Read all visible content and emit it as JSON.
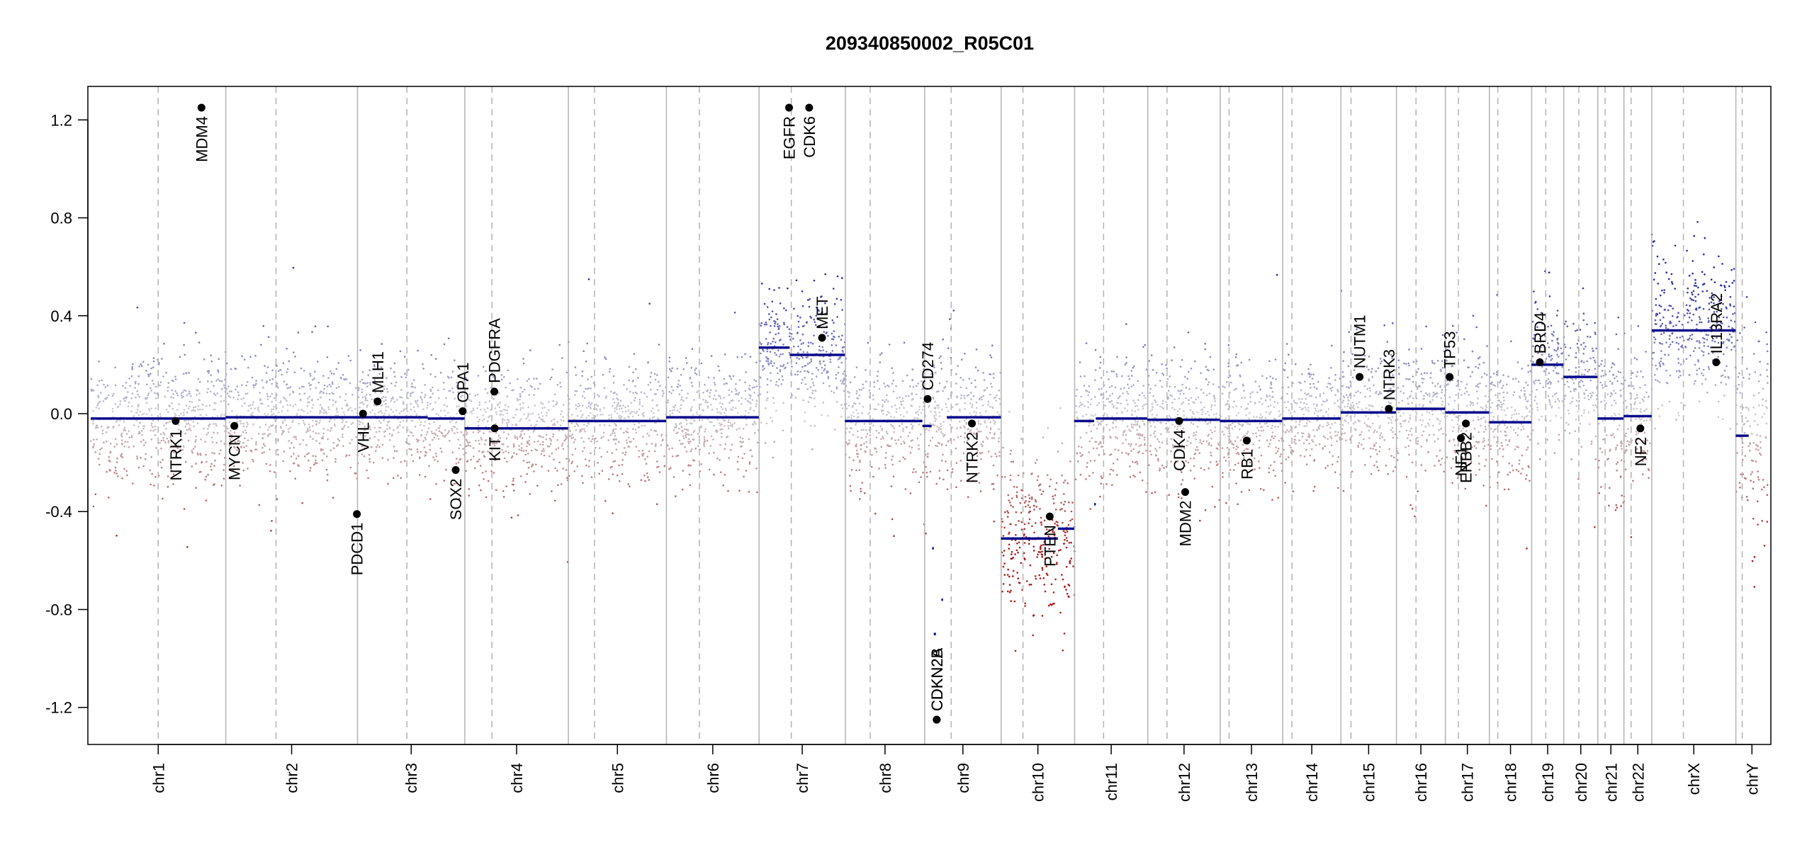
{
  "chart_data": {
    "type": "scatter",
    "title": "209340850002_R05C01",
    "xlabel": "",
    "ylabel": "",
    "ylim": [
      -1.35,
      1.35
    ],
    "yticks": [
      -1.2,
      -0.8,
      -0.4,
      0.0,
      0.4,
      0.8,
      1.2
    ],
    "ytick_labels": [
      "-1.2",
      "-0.8",
      "-0.4",
      "0.0",
      "0.4",
      "0.8",
      "1.2"
    ],
    "grid": false,
    "colors": {
      "gain": "#2b2bb5",
      "loss": "#b52020",
      "neutral": "#b8b8b8",
      "segment": "#0a0a8c",
      "gene_marker": "#000000",
      "boundary": "#b3b3b3"
    },
    "chromosomes": [
      {
        "name": "chr1",
        "start": 0.0,
        "end": 249.25
      },
      {
        "name": "chr2",
        "start": 249.25,
        "end": 492.45
      },
      {
        "name": "chr3",
        "start": 492.45,
        "end": 690.47
      },
      {
        "name": "chr4",
        "start": 690.47,
        "end": 881.63
      },
      {
        "name": "chr5",
        "start": 881.63,
        "end": 1062.55
      },
      {
        "name": "chr6",
        "start": 1062.55,
        "end": 1233.67
      },
      {
        "name": "chr7",
        "start": 1233.67,
        "end": 1392.81
      },
      {
        "name": "chr8",
        "start": 1392.81,
        "end": 1539.17
      },
      {
        "name": "chr9",
        "start": 1539.17,
        "end": 1680.38
      },
      {
        "name": "chr10",
        "start": 1680.38,
        "end": 1815.92
      },
      {
        "name": "chr11",
        "start": 1815.92,
        "end": 1950.93
      },
      {
        "name": "chr12",
        "start": 1950.93,
        "end": 2084.78
      },
      {
        "name": "chr13",
        "start": 2084.78,
        "end": 2199.95
      },
      {
        "name": "chr14",
        "start": 2199.95,
        "end": 2307.3
      },
      {
        "name": "chr15",
        "start": 2307.3,
        "end": 2409.83
      },
      {
        "name": "chr16",
        "start": 2409.83,
        "end": 2500.18
      },
      {
        "name": "chr17",
        "start": 2500.18,
        "end": 2581.38
      },
      {
        "name": "chr18",
        "start": 2581.38,
        "end": 2659.46
      },
      {
        "name": "chr19",
        "start": 2659.46,
        "end": 2718.59
      },
      {
        "name": "chr20",
        "start": 2718.59,
        "end": 2781.61
      },
      {
        "name": "chr21",
        "start": 2781.61,
        "end": 2829.74
      },
      {
        "name": "chr22",
        "start": 2829.74,
        "end": 2881.05
      },
      {
        "name": "chrX",
        "start": 2881.05,
        "end": 3036.32
      },
      {
        "name": "chrY",
        "start": 3036.32,
        "end": 3095.69
      }
    ],
    "centromeres": [
      124.5,
      342.0,
      583.6,
      740.5,
      929.9,
      1123.4,
      1293.0,
      1438.6,
      1588.1,
      1720.6,
      1869.4,
      1986.5,
      2101.0,
      2217.0,
      2326.0,
      2446.0,
      2524.3,
      2597.0,
      2685.5,
      2746.5,
      2795.0,
      2843.0,
      2939.5,
      3048.0
    ],
    "segments": [
      {
        "x0": 0,
        "x1": 249,
        "y": -0.02
      },
      {
        "x0": 249,
        "x1": 492,
        "y": -0.015
      },
      {
        "x0": 492,
        "x1": 622,
        "y": -0.015
      },
      {
        "x0": 622,
        "x1": 690,
        "y": -0.02
      },
      {
        "x0": 690,
        "x1": 881,
        "y": -0.06
      },
      {
        "x0": 881,
        "x1": 1062,
        "y": -0.03
      },
      {
        "x0": 1062,
        "x1": 1233,
        "y": -0.015
      },
      {
        "x0": 1233,
        "x1": 1290,
        "y": 0.27
      },
      {
        "x0": 1290,
        "x1": 1392,
        "y": 0.24
      },
      {
        "x0": 1392,
        "x1": 1535,
        "y": -0.03
      },
      {
        "x0": 1535,
        "x1": 1552,
        "y": -0.05
      },
      {
        "x0": 1553,
        "x1": 1556,
        "y": -0.55
      },
      {
        "x0": 1556,
        "x1": 1560,
        "y": -0.9
      },
      {
        "x0": 1570,
        "x1": 1573,
        "y": -0.76
      },
      {
        "x0": 1580,
        "x1": 1680,
        "y": -0.015
      },
      {
        "x0": 1680,
        "x1": 1785,
        "y": -0.51
      },
      {
        "x0": 1785,
        "x1": 1815,
        "y": -0.47
      },
      {
        "x0": 1815,
        "x1": 1852,
        "y": -0.03
      },
      {
        "x0": 1852,
        "x1": 1855,
        "y": -0.37
      },
      {
        "x0": 1855,
        "x1": 1950,
        "y": -0.02
      },
      {
        "x0": 1950,
        "x1": 2084,
        "y": -0.025
      },
      {
        "x0": 2084,
        "x1": 2199,
        "y": -0.03
      },
      {
        "x0": 2199,
        "x1": 2307,
        "y": -0.02
      },
      {
        "x0": 2307,
        "x1": 2409,
        "y": 0.005
      },
      {
        "x0": 2409,
        "x1": 2500,
        "y": 0.02
      },
      {
        "x0": 2500,
        "x1": 2581,
        "y": 0.005
      },
      {
        "x0": 2581,
        "x1": 2659,
        "y": -0.035
      },
      {
        "x0": 2659,
        "x1": 2718,
        "y": 0.2
      },
      {
        "x0": 2718,
        "x1": 2781,
        "y": 0.15
      },
      {
        "x0": 2781,
        "x1": 2829,
        "y": -0.02
      },
      {
        "x0": 2829,
        "x1": 2881,
        "y": -0.01
      },
      {
        "x0": 2881,
        "x1": 3036,
        "y": 0.34
      },
      {
        "x0": 3036,
        "x1": 3060,
        "y": -0.09
      }
    ],
    "genes": [
      {
        "name": "NTRK1",
        "x": 156.8,
        "y": -0.03,
        "label_dir": "down"
      },
      {
        "name": "MDM4",
        "x": 204.5,
        "y": 1.25,
        "label_dir": "down"
      },
      {
        "name": "MYCN",
        "x": 265.1,
        "y": -0.05,
        "label_dir": "down"
      },
      {
        "name": "PDCD1",
        "x": 491.3,
        "y": -0.41,
        "label_dir": "down"
      },
      {
        "name": "VHL",
        "x": 502.6,
        "y": 0.0,
        "label_dir": "down"
      },
      {
        "name": "MLH1",
        "x": 529.5,
        "y": 0.05,
        "label_dir": "up"
      },
      {
        "name": "SOX2",
        "x": 673.6,
        "y": -0.23,
        "label_dir": "down"
      },
      {
        "name": "OPA1",
        "x": 686.5,
        "y": 0.01,
        "label_dir": "up"
      },
      {
        "name": "KIT",
        "x": 745.6,
        "y": -0.06,
        "label_dir": "down"
      },
      {
        "name": "PDGFRA",
        "x": 745.0,
        "y": 0.09,
        "label_dir": "up"
      },
      {
        "name": "EGFR",
        "x": 1288.9,
        "y": 1.25,
        "label_dir": "down"
      },
      {
        "name": "CDK6",
        "x": 1326.0,
        "y": 1.25,
        "label_dir": "down"
      },
      {
        "name": "MET",
        "x": 1349.8,
        "y": 0.31,
        "label_dir": "up"
      },
      {
        "name": "CD274",
        "x": 1544.6,
        "y": 0.06,
        "label_dir": "up"
      },
      {
        "name": "CDKN2A",
        "x": 1561.3,
        "y": -1.25,
        "label_dir": "up"
      },
      {
        "name": "CDKN2B",
        "x": 1561.4,
        "y": -1.25,
        "label_dir": "up"
      },
      {
        "name": "NTRK2",
        "x": 1626.4,
        "y": -0.04,
        "label_dir": "down"
      },
      {
        "name": "PTEN",
        "x": 1770.0,
        "y": -0.42,
        "label_dir": "down"
      },
      {
        "name": "CDK4",
        "x": 2008.8,
        "y": -0.03,
        "label_dir": "down"
      },
      {
        "name": "MDM2",
        "x": 2020.0,
        "y": -0.32,
        "label_dir": "down"
      },
      {
        "name": "RB1",
        "x": 2133.7,
        "y": -0.11,
        "label_dir": "down"
      },
      {
        "name": "NUTM1",
        "x": 2341.9,
        "y": 0.15,
        "label_dir": "up"
      },
      {
        "name": "NTRK3",
        "x": 2395.8,
        "y": 0.02,
        "label_dir": "up"
      },
      {
        "name": "TP53",
        "x": 2508.0,
        "y": 0.15,
        "label_dir": "up"
      },
      {
        "name": "NF1",
        "x": 2529.0,
        "y": -0.1,
        "label_dir": "down"
      },
      {
        "name": "ERBB2",
        "x": 2538.0,
        "y": -0.04,
        "label_dir": "down"
      },
      {
        "name": "BRD4",
        "x": 2674.5,
        "y": 0.21,
        "label_dir": "up"
      },
      {
        "name": "NF2",
        "x": 2860.0,
        "y": -0.06,
        "label_dir": "down"
      },
      {
        "name": "IL13RA2",
        "x": 3000.0,
        "y": 0.21,
        "label_dir": "up"
      }
    ],
    "probe_profile": [
      {
        "chr": "chr1",
        "mean": -0.02,
        "spread": 0.13
      },
      {
        "chr": "chr2",
        "mean": -0.015,
        "spread": 0.12
      },
      {
        "chr": "chr3",
        "mean": -0.015,
        "spread": 0.12
      },
      {
        "chr": "chr4",
        "mean": -0.06,
        "spread": 0.12
      },
      {
        "chr": "chr5",
        "mean": -0.03,
        "spread": 0.12
      },
      {
        "chr": "chr6",
        "mean": -0.015,
        "spread": 0.12
      },
      {
        "chr": "chr7",
        "mean": 0.25,
        "spread": 0.13
      },
      {
        "chr": "chr8",
        "mean": -0.03,
        "spread": 0.12
      },
      {
        "chr": "chr9",
        "mean": -0.02,
        "spread": 0.13
      },
      {
        "chr": "chr10",
        "mean": -0.5,
        "spread": 0.16
      },
      {
        "chr": "chr11",
        "mean": -0.02,
        "spread": 0.12
      },
      {
        "chr": "chr12",
        "mean": -0.025,
        "spread": 0.12
      },
      {
        "chr": "chr13",
        "mean": -0.03,
        "spread": 0.13
      },
      {
        "chr": "chr14",
        "mean": -0.02,
        "spread": 0.12
      },
      {
        "chr": "chr15",
        "mean": 0.005,
        "spread": 0.12
      },
      {
        "chr": "chr16",
        "mean": 0.02,
        "spread": 0.13
      },
      {
        "chr": "chr17",
        "mean": 0.005,
        "spread": 0.13
      },
      {
        "chr": "chr18",
        "mean": -0.035,
        "spread": 0.12
      },
      {
        "chr": "chr19",
        "mean": 0.2,
        "spread": 0.15
      },
      {
        "chr": "chr20",
        "mean": 0.15,
        "spread": 0.14
      },
      {
        "chr": "chr21",
        "mean": -0.02,
        "spread": 0.16
      },
      {
        "chr": "chr22",
        "mean": -0.01,
        "spread": 0.15
      },
      {
        "chr": "chrX",
        "mean": 0.34,
        "spread": 0.14
      },
      {
        "chr": "chrY",
        "mean": -0.09,
        "spread": 0.2
      }
    ]
  }
}
